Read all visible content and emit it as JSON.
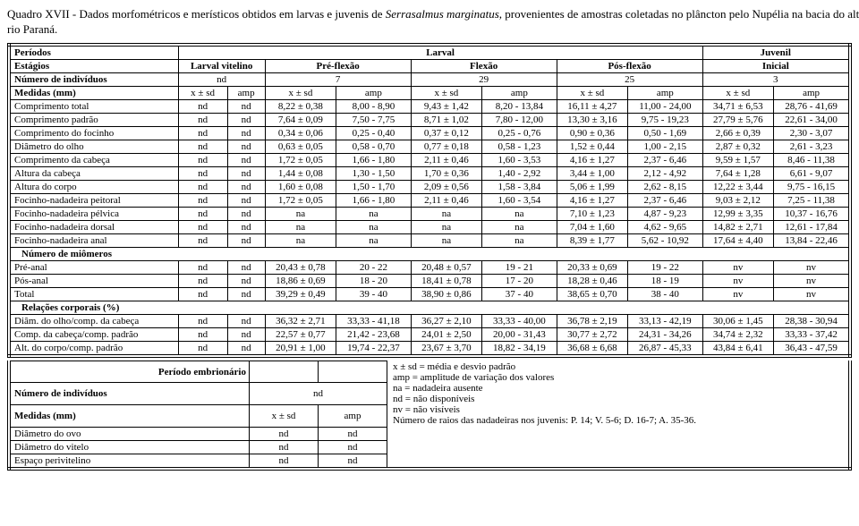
{
  "title_line1": "Quadro XVII - Dados morfométricos e merísticos obtidos em larvas e juvenis de ",
  "title_species": "Serrasalmus marginatus,",
  "title_line2": " provenientes de amostras coletadas no plâncton pelo Nupélia na bacia do alto rio Paraná.",
  "headers": {
    "periodos": "Períodos",
    "larval": "Larval",
    "juvenil": "Juvenil",
    "estagios": "Estágios",
    "larval_vitelino": "Larval vitelino",
    "pre_flexao": "Pré-flexão",
    "flexao": "Flexão",
    "pos_flexao": "Pós-flexão",
    "inicial": "Inicial",
    "num_individuos": "Número de indivíduos",
    "medidas": "Medidas (mm)",
    "xsd": "x ± sd",
    "amp": "amp",
    "num_miomeros": "Número de miômeros",
    "relacoes": "Relações corporais (%)",
    "periodo_embrionario": "Período embrionário"
  },
  "counts": {
    "c1": "nd",
    "c2": "7",
    "c3": "29",
    "c4": "25",
    "c5": "3"
  },
  "rows": [
    {
      "label": "Comprimento total",
      "v": [
        "nd",
        "nd",
        "8,22 ± 0,38",
        "8,00 - 8,90",
        "9,43 ± 1,42",
        "8,20 - 13,84",
        "16,11 ± 4,27",
        "11,00 - 24,00",
        "34,71 ± 6,53",
        "28,76 - 41,69"
      ]
    },
    {
      "label": "Comprimento padrão",
      "v": [
        "nd",
        "nd",
        "7,64 ± 0,09",
        "7,50 - 7,75",
        "8,71 ± 1,02",
        "7,80 - 12,00",
        "13,30 ± 3,16",
        "9,75 - 19,23",
        "27,79 ± 5,76",
        "22,61 - 34,00"
      ]
    },
    {
      "label": "Comprimento do focinho",
      "v": [
        "nd",
        "nd",
        "0,34 ± 0,06",
        "0,25 - 0,40",
        "0,37 ± 0,12",
        "0,25 - 0,76",
        "0,90 ± 0,36",
        "0,50 - 1,69",
        "2,66 ± 0,39",
        "2,30 - 3,07"
      ]
    },
    {
      "label": "Diâmetro do olho",
      "v": [
        "nd",
        "nd",
        "0,63 ± 0,05",
        "0,58 - 0,70",
        "0,77 ± 0,18",
        "0,58 - 1,23",
        "1,52 ± 0,44",
        "1,00 - 2,15",
        "2,87 ± 0,32",
        "2,61 - 3,23"
      ]
    },
    {
      "label": "Comprimento da cabeça",
      "v": [
        "nd",
        "nd",
        "1,72 ± 0,05",
        "1,66 - 1,80",
        "2,11 ± 0,46",
        "1,60 - 3,53",
        "4,16 ± 1,27",
        "2,37 - 6,46",
        "9,59 ± 1,57",
        "8,46 - 11,38"
      ]
    },
    {
      "label": "Altura da cabeça",
      "v": [
        "nd",
        "nd",
        "1,44 ± 0,08",
        "1,30 - 1,50",
        "1,70 ± 0,36",
        "1,40 - 2,92",
        "3,44 ± 1,00",
        "2,12 - 4,92",
        "7,64 ± 1,28",
        "6,61 - 9,07"
      ]
    },
    {
      "label": "Altura do corpo",
      "v": [
        "nd",
        "nd",
        "1,60 ± 0,08",
        "1,50 - 1,70",
        "2,09 ± 0,56",
        "1,58 - 3,84",
        "5,06 ± 1,99",
        "2,62 - 8,15",
        "12,22 ± 3,44",
        "9,75 - 16,15"
      ]
    },
    {
      "label": "Focinho-nadadeira peitoral",
      "v": [
        "nd",
        "nd",
        "1,72 ± 0,05",
        "1,66 - 1,80",
        "2,11 ± 0,46",
        "1,60 - 3,54",
        "4,16 ± 1,27",
        "2,37 - 6,46",
        "9,03 ± 2,12",
        "7,25 - 11,38"
      ]
    },
    {
      "label": "Focinho-nadadeira pélvica",
      "v": [
        "nd",
        "nd",
        "na",
        "na",
        "na",
        "na",
        "7,10 ± 1,23",
        "4,87 - 9,23",
        "12,99 ± 3,35",
        "10,37 - 16,76"
      ]
    },
    {
      "label": "Focinho-nadadeira dorsal",
      "v": [
        "nd",
        "nd",
        "na",
        "na",
        "na",
        "na",
        "7,04 ± 1,60",
        "4,62 - 9,65",
        "14,82 ± 2,71",
        "12,61 - 17,84"
      ]
    },
    {
      "label": "Focinho-nadadeira anal",
      "v": [
        "nd",
        "nd",
        "na",
        "na",
        "na",
        "na",
        "8,39 ± 1,77",
        "5,62 - 10,92",
        "17,64 ± 4,40",
        "13,84 - 22,46"
      ]
    }
  ],
  "miomeros": [
    {
      "label": "Pré-anal",
      "v": [
        "nd",
        "nd",
        "20,43 ± 0,78",
        "20 - 22",
        "20,48 ± 0,57",
        "19 - 21",
        "20,33 ± 0,69",
        "19 - 22",
        "nv",
        "nv"
      ]
    },
    {
      "label": "Pós-anal",
      "v": [
        "nd",
        "nd",
        "18,86 ± 0,69",
        "18 - 20",
        "18,41 ± 0,78",
        "17 - 20",
        "18,28 ± 0,46",
        "18 - 19",
        "nv",
        "nv"
      ]
    },
    {
      "label": "Total",
      "v": [
        "nd",
        "nd",
        "39,29 ± 0,49",
        "39 - 40",
        "38,90 ± 0,86",
        "37 - 40",
        "38,65 ± 0,70",
        "38 - 40",
        "nv",
        "nv"
      ]
    }
  ],
  "relacoes": [
    {
      "label": "Diâm. do olho/comp. da cabeça",
      "v": [
        "nd",
        "nd",
        "36,32 ± 2,71",
        "33,33 - 41,18",
        "36,27 ± 2,10",
        "33,33 - 40,00",
        "36,78 ± 2,19",
        "33,13 - 42,19",
        "30,06 ± 1,45",
        "28,38 - 30,94"
      ]
    },
    {
      "label": "Comp. da cabeça/comp. padrão",
      "v": [
        "nd",
        "nd",
        "22,57 ± 0,77",
        "21,42 - 23,68",
        "24,01 ± 2,50",
        "20,00 - 31,43",
        "30,77 ± 2,72",
        "24,31 - 34,26",
        "34,74 ± 2,32",
        "33,33 - 37,42"
      ]
    },
    {
      "label": "Alt. do corpo/comp. padrão",
      "v": [
        "nd",
        "nd",
        "20,91 ± 1,00",
        "19,74 - 22,37",
        "23,67 ± 3,70",
        "18,82 - 34,19",
        "36,68 ± 6,68",
        "26,87 - 45,33",
        "43,84 ± 6,41",
        "36,43 - 47,59"
      ]
    }
  ],
  "embrio": {
    "num_ind": "nd",
    "rows": [
      {
        "label": "Diâmetro do ovo",
        "v": [
          "nd",
          "nd"
        ]
      },
      {
        "label": "Diâmetro do vitelo",
        "v": [
          "nd",
          "nd"
        ]
      },
      {
        "label": "Espaço perivitelino",
        "v": [
          "nd",
          "nd"
        ]
      }
    ]
  },
  "legend": [
    "x ± sd = média e desvio padrão",
    "amp = amplitude de variação dos valores",
    "na = nadadeira ausente",
    "nd = não disponíveis",
    "nv = não visíveis",
    "Número de raios das nadadeiras nos juvenis: P. 14; V. 5-6; D. 16-7; A. 35-36."
  ]
}
